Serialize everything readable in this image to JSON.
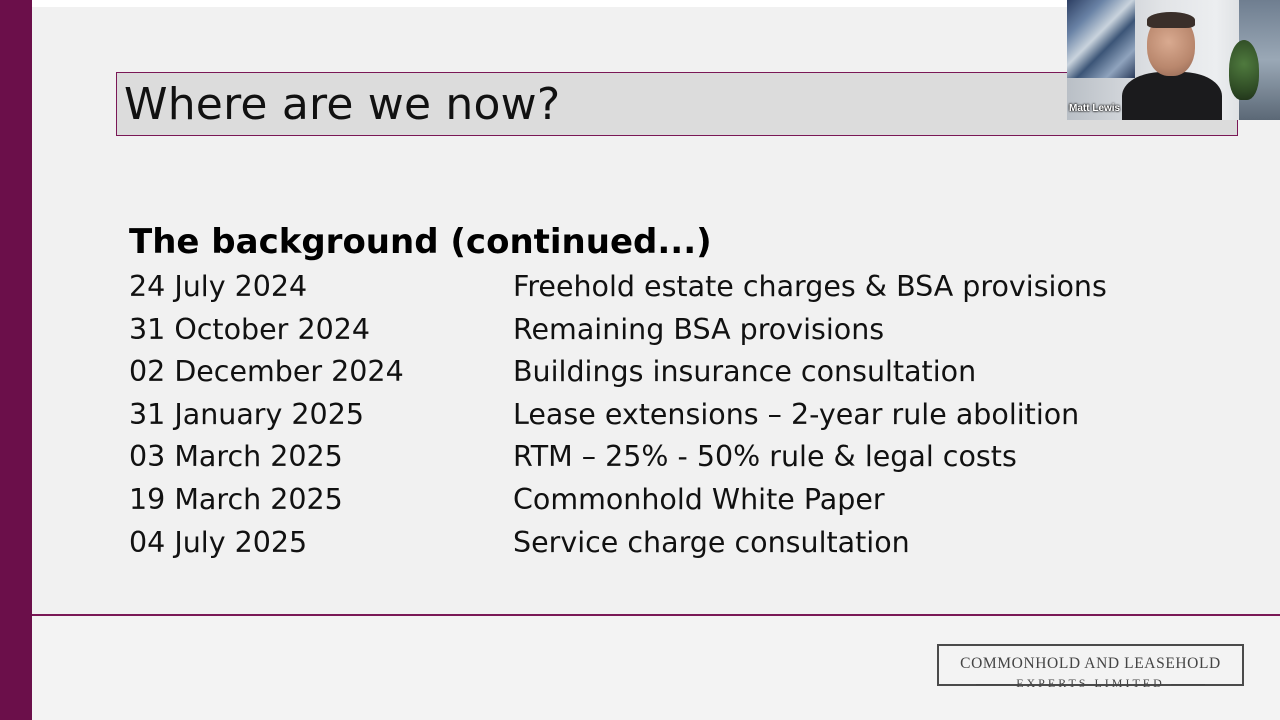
{
  "slide": {
    "title": "Where are we now?",
    "subheading": "The background (continued...)",
    "timeline": [
      {
        "date": "24 July 2024",
        "description": "Freehold estate charges & BSA provisions"
      },
      {
        "date": "31 October 2024",
        "description": "Remaining BSA provisions"
      },
      {
        "date": "02 December 2024",
        "description": "Buildings insurance consultation"
      },
      {
        "date": "31 January 2025",
        "description": "Lease extensions – 2-year rule abolition"
      },
      {
        "date": "03 March 2025",
        "description": "RTM – 25% - 50% rule & legal costs"
      },
      {
        "date": "19 March 2025",
        "description": "Commonhold White Paper"
      },
      {
        "date": "04 July 2025",
        "description": "Service charge consultation"
      }
    ],
    "logo": {
      "line1": "COMMONHOLD AND LEASEHOLD",
      "line2": "EXPERTS LIMITED"
    },
    "colors": {
      "accent": "#6b0f4a",
      "title_bg": "#dcdcdc",
      "slide_bg": "#f1f1f1"
    }
  },
  "webcam": {
    "participant_name": "Matt Lewis"
  }
}
